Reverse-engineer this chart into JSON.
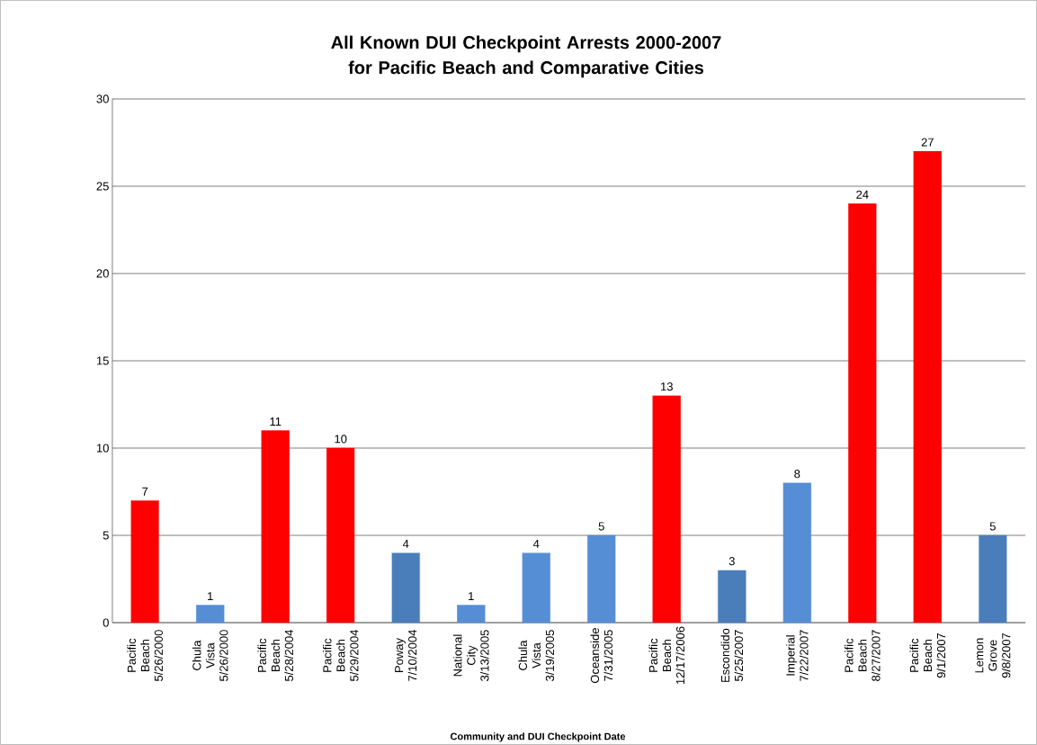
{
  "chart_data": {
    "type": "bar",
    "title": "All Known DUI Checkpoint Arrests 2000-2007 for Pacific Beach and Comparative Cities",
    "xlabel": "Community and DUI Checkpoint Date",
    "categories": [
      "Pacific Beach 5/26/2000",
      "Chula Vista 5/26/2000",
      "Pacific Beach 5/28/2004",
      "Pacific Beach 5/29/2004",
      "Poway 7/10/2004",
      "National City 3/13/2005",
      "Chula Vista 3/19/2005",
      "Oceanside 7/31/2005",
      "Pacific Beach 12/17/2006",
      "Escondido 5/25/2007",
      "Imperial 7/22/2007",
      "Pacific Beach 8/27/2007",
      "Pacific Beach 9/1/2007",
      "Lemon Grove 9/8/2007"
    ],
    "values": [
      7,
      1,
      11,
      10,
      4,
      1,
      4,
      5,
      13,
      3,
      8,
      24,
      27,
      5
    ],
    "colors": [
      "#ff0000",
      "#558ed5",
      "#ff0000",
      "#ff0000",
      "#4a7ebb",
      "#558ed5",
      "#558ed5",
      "#558ed5",
      "#ff0000",
      "#4a7ebb",
      "#558ed5",
      "#ff0000",
      "#ff0000",
      "#4a7ebb"
    ],
    "ylim": [
      0,
      30
    ],
    "yticks": [
      0,
      5,
      10,
      15,
      20,
      25,
      30
    ],
    "grid": "y",
    "data_labels": true
  }
}
